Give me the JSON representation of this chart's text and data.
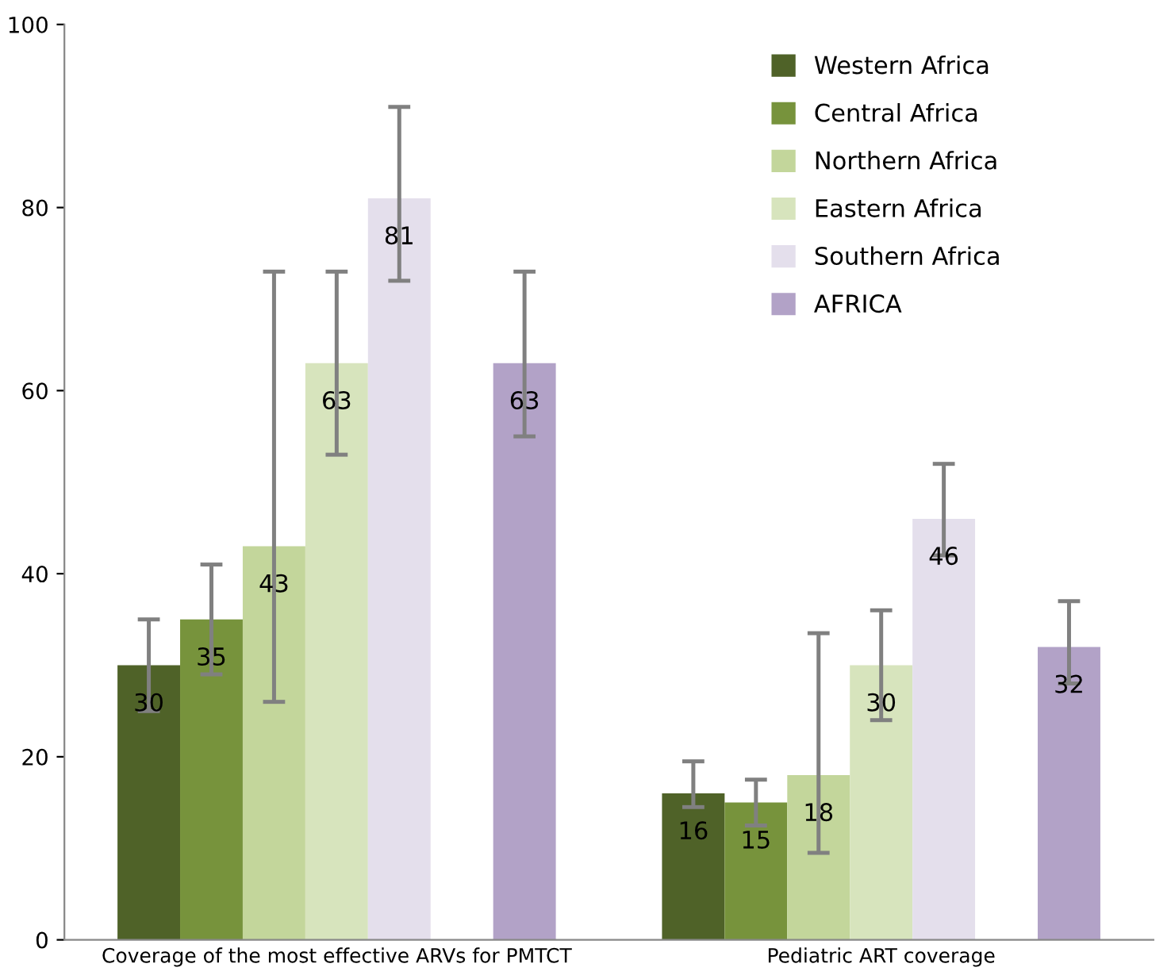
{
  "chart_data": {
    "type": "bar",
    "categories": [
      "Coverage of the most effective ARVs for PMTCT",
      "Pediatric ART coverage"
    ],
    "series": [
      {
        "name": "Western Africa",
        "color": "#4f6228",
        "values": [
          30,
          16
        ],
        "errors": [
          [
            25,
            35
          ],
          [
            14.5,
            19.5
          ]
        ]
      },
      {
        "name": "Central Africa",
        "color": "#77933c",
        "values": [
          35,
          15
        ],
        "errors": [
          [
            29,
            41
          ],
          [
            12.5,
            17.5
          ]
        ]
      },
      {
        "name": "Northern Africa",
        "color": "#c3d69b",
        "values": [
          43,
          18
        ],
        "errors": [
          [
            26,
            73
          ],
          [
            9.5,
            33.5
          ]
        ]
      },
      {
        "name": "Eastern Africa",
        "color": "#d7e4bd",
        "values": [
          63,
          30
        ],
        "errors": [
          [
            53,
            73
          ],
          [
            24,
            36
          ]
        ]
      },
      {
        "name": "Southern Africa",
        "color": "#e4dfec",
        "values": [
          81,
          46
        ],
        "errors": [
          [
            72,
            91
          ],
          [
            42,
            52
          ]
        ]
      },
      {
        "name": "AFRICA",
        "color": "#b2a2c7",
        "values": [
          63,
          32
        ],
        "errors": [
          [
            55,
            73
          ],
          [
            28,
            37
          ]
        ]
      }
    ],
    "ylim": [
      0,
      100
    ],
    "yticks": [
      0,
      20,
      40,
      60,
      80,
      100
    ],
    "data_labels": true,
    "legend": "top right",
    "grid": false
  }
}
